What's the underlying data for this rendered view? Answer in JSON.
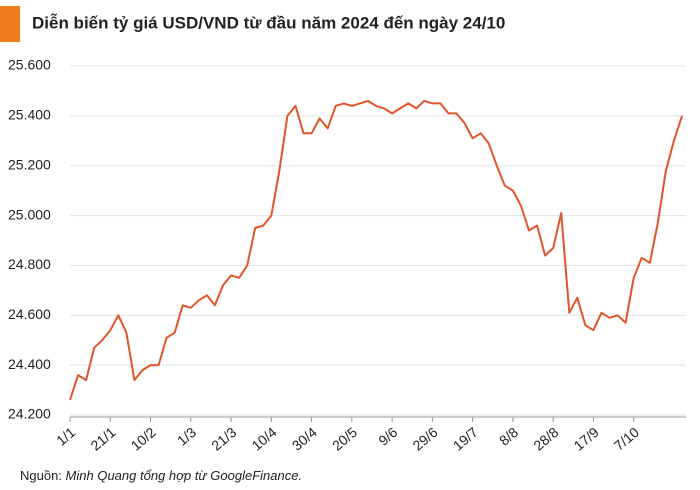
{
  "chart_data": {
    "type": "line",
    "title": "Diễn biến tỷ giá USD/VND từ đầu năm 2024 đến ngày 24/10",
    "source_label": "Nguồn:",
    "source_text": "Minh Quang tổng hợp từ GoogleFinance.",
    "categories": [
      "1/1",
      null,
      null,
      null,
      null,
      "21/1",
      null,
      null,
      null,
      null,
      "10/2",
      null,
      null,
      null,
      null,
      "1/3",
      null,
      null,
      null,
      null,
      "21/3",
      null,
      null,
      null,
      null,
      "10/4",
      null,
      null,
      null,
      null,
      "30/4",
      null,
      null,
      null,
      null,
      "20/5",
      null,
      null,
      null,
      null,
      "9/6",
      null,
      null,
      null,
      null,
      "29/6",
      null,
      null,
      null,
      null,
      "19/7",
      null,
      null,
      null,
      null,
      "8/8",
      null,
      null,
      null,
      null,
      "28/8",
      null,
      null,
      null,
      null,
      "17/9",
      null,
      null,
      null,
      null,
      "7/10",
      null,
      null,
      null,
      null,
      null,
      null
    ],
    "series": [
      {
        "name": "USD/VND",
        "color": "#e0552a",
        "values": [
          24260,
          24360,
          24340,
          24470,
          24500,
          24540,
          24600,
          24530,
          24340,
          24380,
          24400,
          24400,
          24510,
          24530,
          24640,
          24630,
          24660,
          24680,
          24640,
          24720,
          24760,
          24750,
          24800,
          24950,
          24960,
          25000,
          25180,
          25400,
          25440,
          25330,
          25330,
          25390,
          25350,
          25440,
          25450,
          25440,
          25450,
          25460,
          25440,
          25430,
          25410,
          25430,
          25450,
          25430,
          25460,
          25450,
          25450,
          25410,
          25410,
          25370,
          25310,
          25330,
          25290,
          25200,
          25120,
          25100,
          25040,
          24940,
          24960,
          24840,
          24870,
          25010,
          24610,
          24670,
          24560,
          24540,
          24610,
          24590,
          24600,
          24570,
          24750,
          24830,
          24810,
          24970,
          25180,
          25300,
          25400
        ]
      }
    ],
    "ylim": [
      24200,
      25600
    ],
    "yticks": [
      {
        "value": 24200,
        "label": "24.200"
      },
      {
        "value": 24400,
        "label": "24.400"
      },
      {
        "value": 24600,
        "label": "24.600"
      },
      {
        "value": 24800,
        "label": "24.800"
      },
      {
        "value": 25000,
        "label": "25.000"
      },
      {
        "value": 25200,
        "label": "25.200"
      },
      {
        "value": 25400,
        "label": "25.400"
      },
      {
        "value": 25600,
        "label": "25.600"
      }
    ],
    "grid": true
  }
}
